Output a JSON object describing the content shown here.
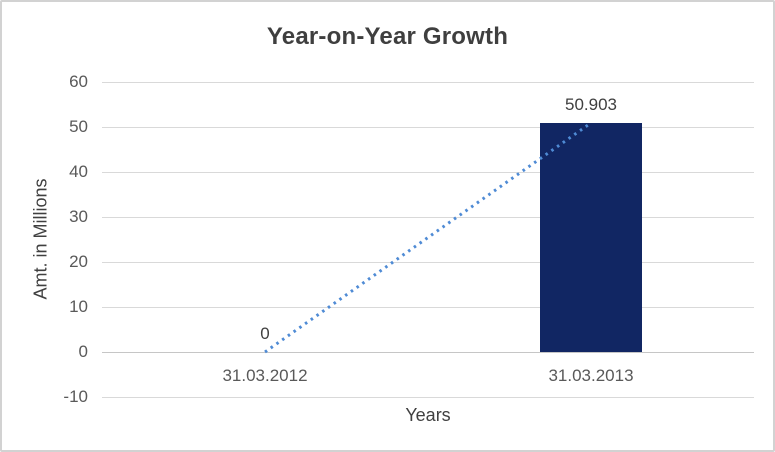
{
  "window": {
    "background": "#FFFFFF",
    "border_color": "#D2D2D2"
  },
  "chart_data": {
    "type": "bar",
    "title": "Year-on-Year Growth",
    "xlabel": "Years",
    "ylabel": "Amt. in Millions",
    "categories": [
      "31.03.2012",
      "31.03.2013"
    ],
    "series": [
      {
        "name": "Amount",
        "type": "bar",
        "values": [
          0,
          50.903
        ],
        "color": "#112663"
      },
      {
        "name": "Trendline",
        "type": "dotted_line",
        "values": [
          0,
          50.903
        ],
        "color": "#4F8BD5"
      }
    ],
    "data_labels": [
      "0",
      "50.903"
    ],
    "ylim": [
      -10,
      60
    ],
    "yticks": [
      60,
      50,
      40,
      30,
      20,
      10,
      0,
      -10
    ],
    "grid": true,
    "legend": "none",
    "colors": {
      "bar": "#112663",
      "trendline": "#4F8BD5",
      "gridline": "#D9D9D9",
      "axis_line": "#C6C6C6",
      "title_text": "#3F3F3F",
      "axis_text": "#595959",
      "label_text": "#3F3F3F"
    }
  }
}
